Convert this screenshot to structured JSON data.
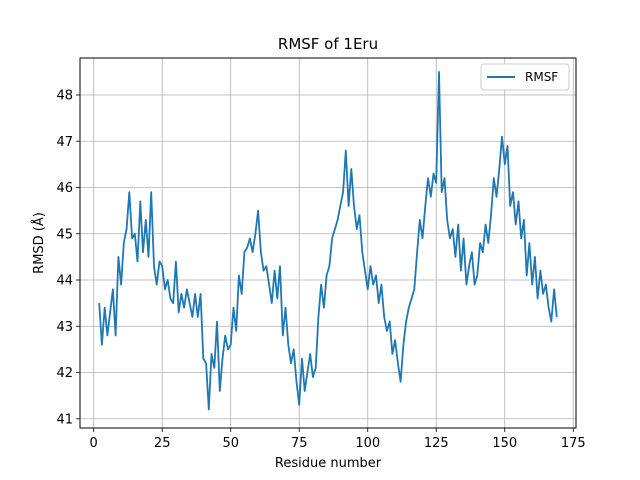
{
  "chart_data": {
    "type": "line",
    "title": "RMSF of 1Eru",
    "xlabel": "Residue number",
    "ylabel": "RMSD (Å)",
    "xlim": [
      -5,
      176
    ],
    "ylim": [
      40.8,
      48.8
    ],
    "xticks": [
      0,
      25,
      50,
      75,
      100,
      125,
      150,
      175
    ],
    "yticks": [
      41,
      42,
      43,
      44,
      45,
      46,
      47,
      48
    ],
    "grid": true,
    "legend_position": "top-right",
    "series": [
      {
        "name": "RMSF",
        "color": "#1f77b4",
        "x": [
          2,
          3,
          4,
          5,
          6,
          7,
          8,
          9,
          10,
          11,
          12,
          13,
          14,
          15,
          16,
          17,
          18,
          19,
          20,
          21,
          22,
          23,
          24,
          25,
          26,
          27,
          28,
          29,
          30,
          31,
          32,
          33,
          34,
          35,
          36,
          37,
          38,
          39,
          40,
          41,
          42,
          43,
          44,
          45,
          46,
          47,
          48,
          49,
          50,
          51,
          52,
          53,
          54,
          55,
          56,
          57,
          58,
          59,
          60,
          61,
          62,
          63,
          64,
          65,
          66,
          67,
          68,
          69,
          70,
          71,
          72,
          73,
          74,
          75,
          76,
          77,
          78,
          79,
          80,
          81,
          82,
          83,
          84,
          85,
          86,
          87,
          88,
          89,
          90,
          91,
          92,
          93,
          94,
          95,
          96,
          97,
          98,
          99,
          100,
          101,
          102,
          103,
          104,
          105,
          106,
          107,
          108,
          109,
          110,
          111,
          112,
          113,
          114,
          115,
          116,
          117,
          118,
          119,
          120,
          121,
          122,
          123,
          124,
          125,
          126,
          127,
          128,
          129,
          130,
          131,
          132,
          133,
          134,
          135,
          136,
          137,
          138,
          139,
          140,
          141,
          142,
          143,
          144,
          145,
          146,
          147,
          148,
          149,
          150,
          151,
          152,
          153,
          154,
          155,
          156,
          157,
          158,
          159,
          160,
          161,
          162,
          163,
          164,
          165,
          166,
          167,
          168,
          169
        ],
        "values": [
          43.5,
          42.6,
          43.4,
          42.8,
          43.3,
          43.8,
          42.8,
          44.5,
          43.9,
          44.8,
          45.1,
          45.9,
          44.9,
          45.0,
          44.4,
          45.7,
          44.6,
          45.3,
          44.5,
          45.9,
          44.3,
          43.9,
          44.4,
          44.3,
          43.8,
          44.0,
          43.6,
          43.5,
          44.4,
          43.3,
          43.7,
          43.4,
          43.8,
          43.5,
          43.2,
          43.7,
          43.2,
          43.7,
          42.3,
          42.2,
          41.2,
          42.4,
          42.1,
          43.1,
          41.6,
          42.3,
          42.8,
          42.5,
          42.6,
          43.4,
          42.9,
          44.1,
          43.7,
          44.6,
          44.7,
          44.9,
          44.6,
          45.0,
          45.5,
          44.6,
          44.2,
          44.3,
          43.9,
          43.5,
          44.2,
          43.6,
          44.3,
          42.8,
          43.4,
          42.6,
          42.2,
          42.5,
          41.8,
          41.3,
          42.3,
          41.6,
          42.0,
          42.4,
          41.9,
          42.1,
          43.2,
          43.9,
          43.4,
          44.1,
          44.3,
          44.9,
          45.1,
          45.3,
          45.6,
          45.9,
          46.8,
          45.6,
          46.4,
          45.6,
          45.1,
          45.4,
          44.6,
          44.2,
          43.8,
          44.3,
          43.9,
          44.1,
          43.5,
          43.9,
          43.2,
          42.9,
          43.1,
          42.4,
          42.7,
          42.2,
          41.8,
          42.6,
          43.1,
          43.4,
          43.6,
          43.8,
          44.6,
          45.3,
          44.9,
          45.6,
          46.2,
          45.8,
          46.3,
          46.1,
          48.5,
          45.9,
          46.2,
          45.3,
          44.9,
          45.1,
          44.5,
          45.2,
          44.2,
          44.9,
          43.9,
          44.3,
          44.6,
          43.9,
          44.1,
          44.8,
          44.6,
          45.2,
          44.8,
          45.4,
          46.2,
          45.8,
          46.4,
          47.1,
          46.5,
          46.9,
          45.6,
          45.9,
          45.2,
          45.7,
          44.9,
          45.3,
          44.1,
          44.8,
          43.9,
          44.5,
          43.6,
          44.2,
          43.7,
          43.9,
          43.4,
          43.1,
          43.8,
          43.2
        ]
      }
    ]
  }
}
